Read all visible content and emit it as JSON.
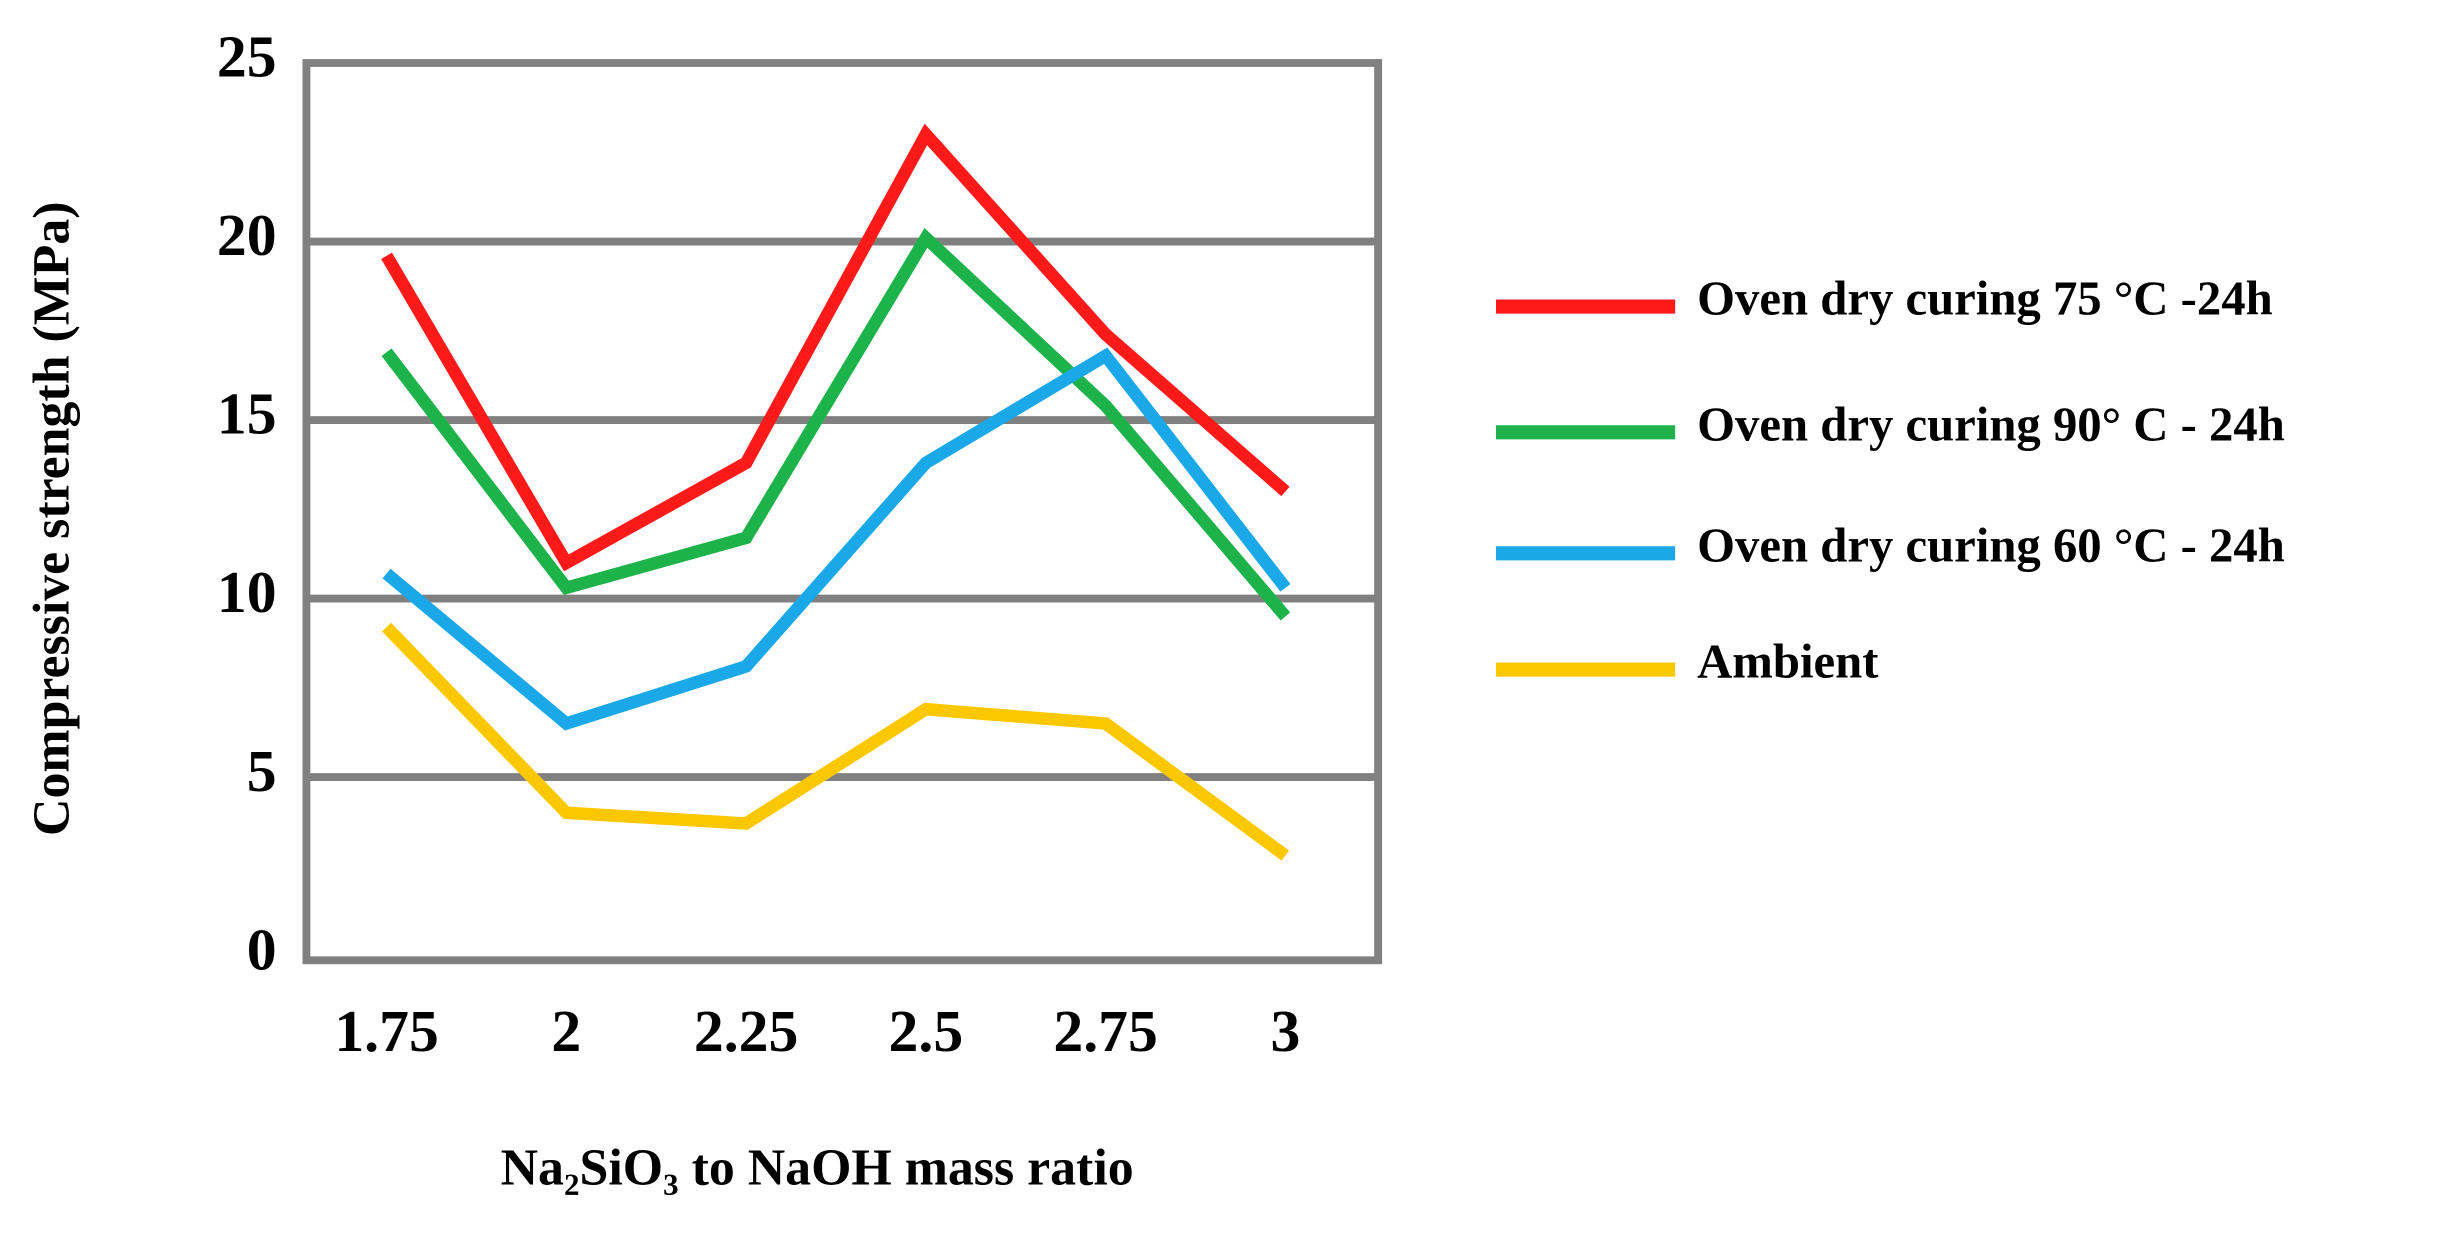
{
  "chart_data": {
    "type": "line",
    "x_label": "Na₂SiO₃ to NaOH mass ratio",
    "y_label": "Compressive strength (MPa)",
    "categories": [
      "1.75",
      "2",
      "2.25",
      "2.5",
      "2.75",
      "3"
    ],
    "series": [
      {
        "name": "Oven dry curing 75 °C -24h",
        "color": "#ff1a1a",
        "values": [
          19.6,
          11.0,
          13.8,
          23.0,
          17.4,
          13.0
        ]
      },
      {
        "name": "Oven dry curing 90° C - 24h",
        "color": "#1db34a",
        "values": [
          16.9,
          10.3,
          11.7,
          20.1,
          15.4,
          9.5
        ]
      },
      {
        "name": "Oven dry curing 60 °C - 24h",
        "color": "#1aa8e8",
        "values": [
          10.7,
          6.5,
          8.1,
          13.8,
          16.8,
          10.3
        ]
      },
      {
        "name": "Ambient",
        "color": "#fbc800",
        "values": [
          9.2,
          4.0,
          3.7,
          6.9,
          6.5,
          2.8
        ]
      }
    ],
    "ylim": [
      0,
      25
    ],
    "yticks": [
      0,
      5,
      10,
      15,
      20,
      25
    ],
    "grid": true,
    "legend": "right"
  }
}
